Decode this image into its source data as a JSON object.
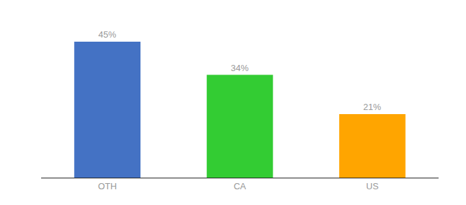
{
  "chart_data": {
    "type": "bar",
    "categories": [
      "OTH",
      "CA",
      "US"
    ],
    "values": [
      45,
      34,
      21
    ],
    "value_labels": [
      "45%",
      "34%",
      "21%"
    ],
    "colors": [
      "#4472C4",
      "#33CC33",
      "#FFA500"
    ],
    "ylim": [
      0,
      52
    ],
    "data_labels": true,
    "tick_labels": "x",
    "grid": false
  }
}
